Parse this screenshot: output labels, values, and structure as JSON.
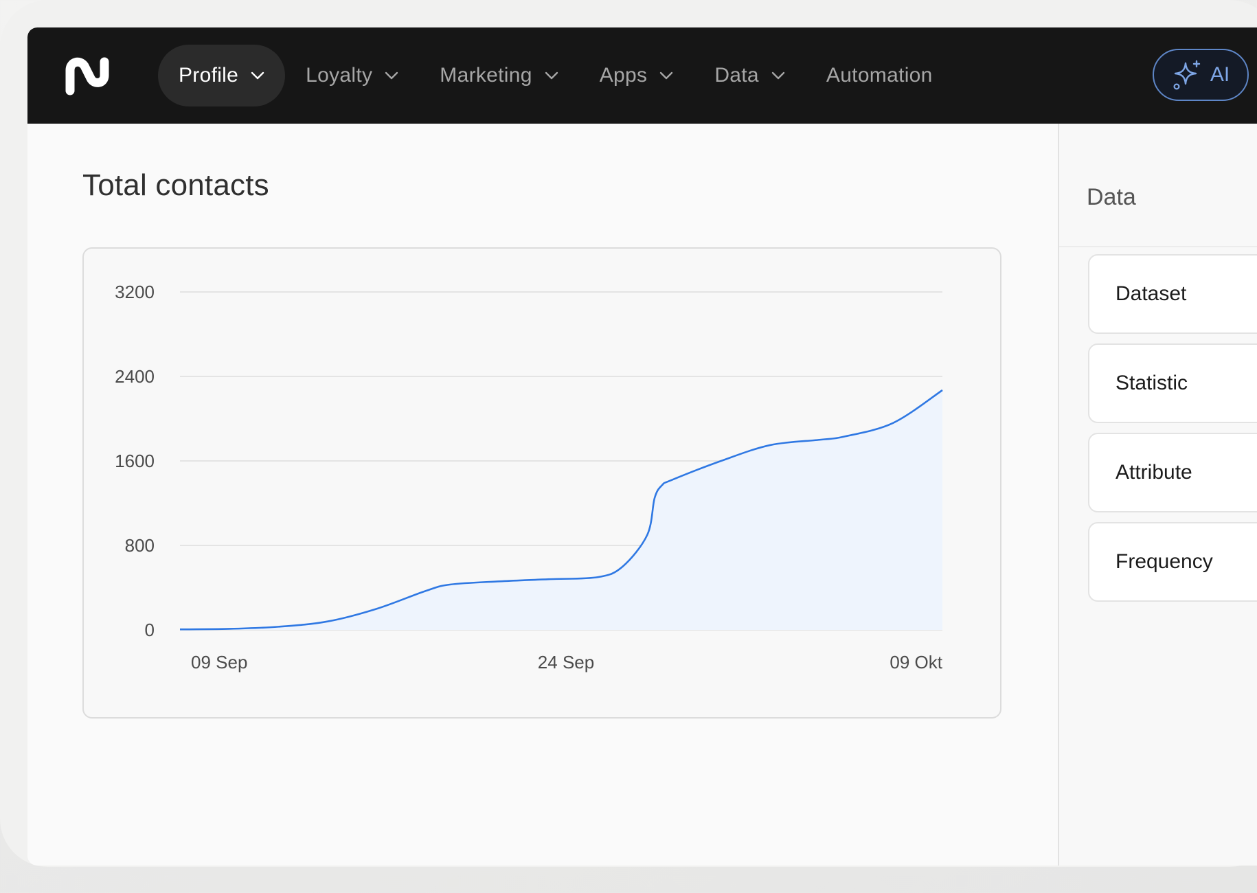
{
  "nav": {
    "items": [
      {
        "label": "Profile",
        "active": true,
        "dropdown": true
      },
      {
        "label": "Loyalty",
        "active": false,
        "dropdown": true
      },
      {
        "label": "Marketing",
        "active": false,
        "dropdown": true
      },
      {
        "label": "Apps",
        "active": false,
        "dropdown": true
      },
      {
        "label": "Data",
        "active": false,
        "dropdown": true
      },
      {
        "label": "Automation",
        "active": false,
        "dropdown": false
      }
    ],
    "ai_label": "AI"
  },
  "main": {
    "title": "Total contacts"
  },
  "chart_data": {
    "type": "area",
    "title": "",
    "xlabel": "",
    "ylabel": "",
    "ylim": [
      0,
      3200
    ],
    "yticks": [
      0,
      800,
      1600,
      2400,
      3200
    ],
    "xtick_labels": [
      "09 Sep",
      "24 Sep",
      "09 Okt"
    ],
    "x_range": [
      0,
      31
    ],
    "grid": true,
    "line_color": "#2f78e3",
    "fill_color": "#eef4fd",
    "series": [
      {
        "x": [
          0,
          2,
          4,
          6,
          8,
          10,
          11,
          13,
          15,
          17,
          18,
          19,
          19.3,
          19.6,
          20,
          22,
          24,
          26,
          27,
          29,
          31
        ],
        "values": [
          5,
          10,
          30,
          80,
          200,
          370,
          430,
          460,
          480,
          500,
          600,
          900,
          1250,
          1370,
          1420,
          1600,
          1750,
          1800,
          1830,
          1960,
          2270
        ]
      }
    ]
  },
  "sidebar": {
    "title": "Data",
    "items": [
      {
        "label": "Dataset"
      },
      {
        "label": "Statistic"
      },
      {
        "label": "Attribute"
      },
      {
        "label": "Frequency"
      }
    ]
  }
}
